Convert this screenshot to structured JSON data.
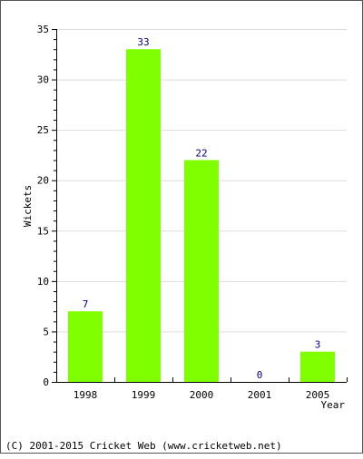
{
  "chart_data": {
    "type": "bar",
    "categories": [
      "1998",
      "1999",
      "2000",
      "2001",
      "2005"
    ],
    "values": [
      7,
      33,
      22,
      0,
      3
    ],
    "value_labels": [
      "7",
      "33",
      "22",
      "0",
      "3"
    ],
    "title": "",
    "xlabel": "Year",
    "ylabel": "Wickets",
    "ylim": [
      0,
      35
    ],
    "yticks": [
      0,
      5,
      10,
      15,
      20,
      25,
      30,
      35
    ],
    "grid": true,
    "legend": "none",
    "bar_color": "#80ff00",
    "label_color": "#000080",
    "grid_color": "#dddddd"
  },
  "footer": {
    "copyright": "(C) 2001-2015 Cricket Web (www.cricketweb.net)"
  }
}
